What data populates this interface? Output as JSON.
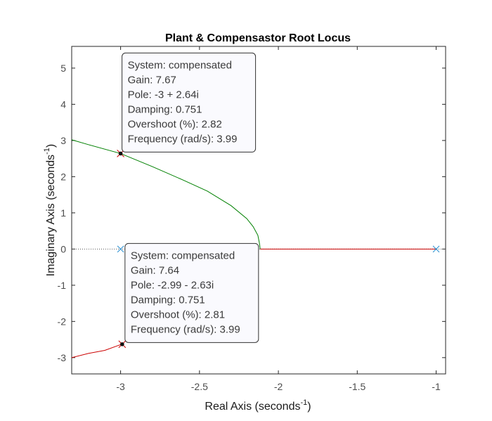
{
  "chart_data": {
    "type": "line",
    "title": "Plant & Compensastor Root Locus",
    "xlabel": "Real Axis (seconds",
    "xlabel_sup": "-1",
    "xlabel_close": ")",
    "ylabel": "Imaginary Axis (seconds",
    "ylabel_sup": "-1",
    "ylabel_close": ")",
    "xlim": [
      -3.31,
      -0.94
    ],
    "ylim": [
      -3.45,
      5.6
    ],
    "x_ticks": [
      -3,
      -2.5,
      -2,
      -1.5,
      -1
    ],
    "x_tick_labels": [
      "-3",
      "-2.5",
      "-2",
      "-1.5",
      "-1"
    ],
    "y_ticks": [
      -3,
      -2,
      -1,
      0,
      1,
      2,
      3,
      4,
      5
    ],
    "y_tick_labels": [
      "-3",
      "-2",
      "-1",
      "0",
      "1",
      "2",
      "3",
      "4",
      "5"
    ],
    "grid": false,
    "colors": {
      "upper_branch": "#008000",
      "lower_branch": "#cc0000",
      "real_branch": "#cc0000",
      "pole_marker": "#2a8fd0",
      "selected_marker": "#cc0000",
      "zero_line": "#555555"
    },
    "series": [
      {
        "points": [
          [
            -2.115,
            0.0
          ],
          [
            -2.12,
            0.16
          ],
          [
            -2.13,
            0.38
          ],
          [
            -2.16,
            0.62
          ],
          [
            -2.2,
            0.84
          ],
          [
            -2.3,
            1.2
          ],
          [
            -2.45,
            1.6
          ],
          [
            -2.6,
            1.9
          ],
          [
            -2.8,
            2.28
          ],
          [
            -3.0,
            2.64
          ],
          [
            -3.2,
            2.88
          ],
          [
            -3.31,
            3.02
          ]
        ]
      },
      {
        "points": [
          [
            -3.31,
            -3.0
          ],
          [
            -3.2,
            -2.88
          ],
          [
            -3.1,
            -2.8
          ],
          [
            -3.0,
            -2.64
          ]
        ]
      },
      {
        "points": [
          [
            -2.115,
            0.0
          ],
          [
            -1.0,
            0.0
          ]
        ]
      }
    ],
    "poles": [
      [
        -1.0,
        0.0
      ],
      [
        -3.0,
        0.0
      ]
    ],
    "selected_points": [
      [
        -3.0,
        2.64
      ],
      [
        -2.99,
        -2.63
      ]
    ],
    "datatips": [
      {
        "anchor": [
          -3.0,
          2.64
        ],
        "lines": [
          "System: compensated",
          "Gain: 7.67",
          "Pole: -3 + 2.64i",
          "Damping: 0.751",
          "Overshoot (%): 2.82",
          "Frequency (rad/s): 3.99"
        ]
      },
      {
        "anchor": [
          -2.99,
          -2.63
        ],
        "lines": [
          "System: compensated",
          "Gain: 7.64",
          "Pole: -2.99 - 2.63i",
          "Damping: 0.751",
          "Overshoot (%): 2.81",
          "Frequency (rad/s): 3.99"
        ]
      }
    ]
  }
}
